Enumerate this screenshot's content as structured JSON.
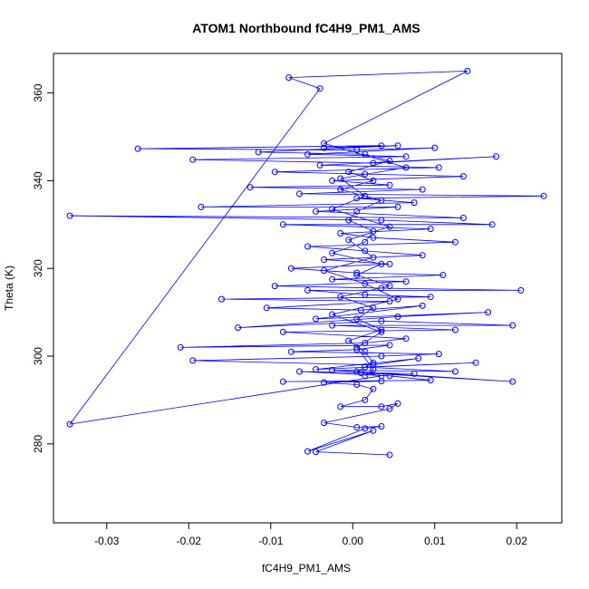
{
  "chart_data": {
    "type": "line",
    "title": "ATOM1 Northbound fC4H9_PM1_AMS",
    "xlabel": "fC4H9_PM1_AMS",
    "ylabel": "Theta (K)",
    "xlim": [
      -0.0365,
      0.0255
    ],
    "ylim": [
      262,
      369
    ],
    "xticks": [
      -0.03,
      -0.02,
      -0.01,
      0.0,
      0.01,
      0.02
    ],
    "xtick_labels": [
      "-0.03",
      "-0.02",
      "-0.01",
      "0.00",
      "0.01",
      "0.02"
    ],
    "yticks": [
      280,
      300,
      320,
      340,
      360
    ],
    "ytick_labels": [
      "280",
      "300",
      "320",
      "340",
      "360"
    ],
    "grid": false,
    "color": "#0000ff",
    "marker": "open-circle",
    "points": [
      [
        0.0045,
        277.5
      ],
      [
        -0.0045,
        278.2
      ],
      [
        0.0025,
        283.0
      ],
      [
        -0.0055,
        278.3
      ],
      [
        0.0015,
        283.5
      ],
      [
        0.0035,
        284.0
      ],
      [
        0.0005,
        283.8
      ],
      [
        -0.0035,
        284.8
      ],
      [
        0.0045,
        288.0
      ],
      [
        0.0055,
        289.2
      ],
      [
        0.0035,
        288.5
      ],
      [
        -0.0015,
        288.5
      ],
      [
        0.0015,
        290.0
      ],
      [
        0.0025,
        292.5
      ],
      [
        0.0005,
        293.5
      ],
      [
        -0.0035,
        294.0
      ],
      [
        0.0035,
        294.3
      ],
      [
        -0.0085,
        294.2
      ],
      [
        0.0095,
        294.5
      ],
      [
        0.0045,
        295.5
      ],
      [
        -0.0065,
        296.5
      ],
      [
        0.0075,
        296.0
      ],
      [
        0.001,
        296.2
      ],
      [
        0.0195,
        294.2
      ],
      [
        -0.0025,
        296.8
      ],
      [
        0.0125,
        296.5
      ],
      [
        0.0015,
        297.5
      ],
      [
        0.015,
        298.5
      ],
      [
        -0.0045,
        297.0
      ],
      [
        0.008,
        299.5
      ],
      [
        0.0025,
        298.0
      ],
      [
        -0.0195,
        299.0
      ],
      [
        0.0035,
        300.0
      ],
      [
        0.0105,
        300.5
      ],
      [
        -0.0075,
        301.0
      ],
      [
        0.0005,
        301.5
      ],
      [
        0.0045,
        302.5
      ],
      [
        -0.021,
        302.0
      ],
      [
        0.0015,
        303.0
      ],
      [
        0.0065,
        304.0
      ],
      [
        -0.0085,
        305.5
      ],
      [
        0.0125,
        306.0
      ],
      [
        -0.0025,
        307.0
      ],
      [
        0.0195,
        307.0
      ],
      [
        0.0035,
        308.0
      ],
      [
        -0.014,
        306.5
      ],
      [
        0.0055,
        309.0
      ],
      [
        0.0165,
        310.0
      ],
      [
        -0.0045,
        308.5
      ],
      [
        0.0085,
        311.5
      ],
      [
        0.001,
        310.5
      ],
      [
        -0.0105,
        311.0
      ],
      [
        0.0045,
        312.5
      ],
      [
        -0.016,
        313.0
      ],
      [
        0.0095,
        313.5
      ],
      [
        0.0015,
        314.0
      ],
      [
        -0.0055,
        315.0
      ],
      [
        0.0205,
        315.0
      ],
      [
        0.0035,
        315.5
      ],
      [
        -0.0095,
        316.0
      ],
      [
        0.0065,
        317.0
      ],
      [
        -0.0025,
        317.5
      ],
      [
        0.011,
        318.5
      ],
      [
        0.0005,
        319.0
      ],
      [
        -0.0075,
        320.0
      ],
      [
        0.0045,
        321.0
      ],
      [
        -0.0035,
        322.0
      ],
      [
        0.0085,
        323.0
      ],
      [
        0.0015,
        324.0
      ],
      [
        -0.0055,
        325.0
      ],
      [
        0.0125,
        326.0
      ],
      [
        0.0025,
        327.0
      ],
      [
        -0.0015,
        328.0
      ],
      [
        0.0095,
        329.0
      ],
      [
        -0.0085,
        330.0
      ],
      [
        0.017,
        330.0
      ],
      [
        0.0035,
        331.0
      ],
      [
        -0.0345,
        332.0
      ],
      [
        0.0135,
        331.5
      ],
      [
        -0.0045,
        333.0
      ],
      [
        0.0055,
        334.0
      ],
      [
        -0.0185,
        334.0
      ],
      [
        0.0075,
        335.0
      ],
      [
        0.0005,
        336.0
      ],
      [
        0.0233,
        336.5
      ],
      [
        -0.0065,
        337.0
      ],
      [
        0.0085,
        338.0
      ],
      [
        -0.0125,
        338.5
      ],
      [
        0.0045,
        339.0
      ],
      [
        -0.0025,
        340.0
      ],
      [
        0.0135,
        341.0
      ],
      [
        0.0015,
        341.5
      ],
      [
        -0.0095,
        342.0
      ],
      [
        0.0105,
        343.0
      ],
      [
        -0.004,
        343.5
      ],
      [
        0.0175,
        345.5
      ],
      [
        0.0025,
        344.0
      ],
      [
        -0.0195,
        344.8
      ],
      [
        0.0065,
        345.5
      ],
      [
        -0.0055,
        346.0
      ],
      [
        0.01,
        347.5
      ],
      [
        0.0005,
        347.0
      ],
      [
        -0.0262,
        347.3
      ],
      [
        0.0035,
        348.0
      ],
      [
        -0.0035,
        347.5
      ],
      [
        0.0055,
        348.0
      ],
      [
        -0.0115,
        346.5
      ],
      [
        0.0015,
        346.0
      ],
      [
        0.0045,
        344.5
      ],
      [
        -0.0005,
        342.0
      ],
      [
        0.0025,
        340.0
      ],
      [
        -0.0015,
        338.0
      ],
      [
        0.0035,
        335.5
      ],
      [
        0.0005,
        333.0
      ],
      [
        -0.0005,
        331.0
      ],
      [
        0.0025,
        328.5
      ],
      [
        0.0015,
        326.0
      ],
      [
        -0.0025,
        323.5
      ],
      [
        0.0035,
        321.0
      ],
      [
        0.0005,
        318.5
      ],
      [
        0.0045,
        316.0
      ],
      [
        -0.0015,
        313.5
      ],
      [
        0.0025,
        311.0
      ],
      [
        0.0005,
        308.5
      ],
      [
        0.0035,
        306.0
      ],
      [
        -0.0005,
        303.5
      ],
      [
        0.0015,
        301.0
      ],
      [
        0.0025,
        298.5
      ],
      [
        0.0005,
        296.5
      ],
      [
        0.0035,
        295.5
      ],
      [
        -0.0345,
        284.5
      ],
      [
        -0.004,
        361.0
      ],
      [
        -0.0078,
        363.5
      ],
      [
        0.014,
        365.0
      ],
      [
        -0.0035,
        348.5
      ],
      [
        0.0065,
        343.0
      ],
      [
        -0.0015,
        340.5
      ],
      [
        0.0015,
        336.5
      ],
      [
        -0.0025,
        333.5
      ],
      [
        0.0045,
        329.5
      ],
      [
        -0.0005,
        326.5
      ],
      [
        0.0025,
        322.5
      ],
      [
        -0.0035,
        319.5
      ],
      [
        0.0015,
        316.5
      ],
      [
        0.0055,
        313.0
      ],
      [
        -0.0025,
        309.5
      ],
      [
        0.0035,
        305.5
      ],
      [
        0.0005,
        302.0
      ],
      [
        0.0025,
        297.0
      ],
      [
        0.0015,
        295.5
      ]
    ]
  }
}
